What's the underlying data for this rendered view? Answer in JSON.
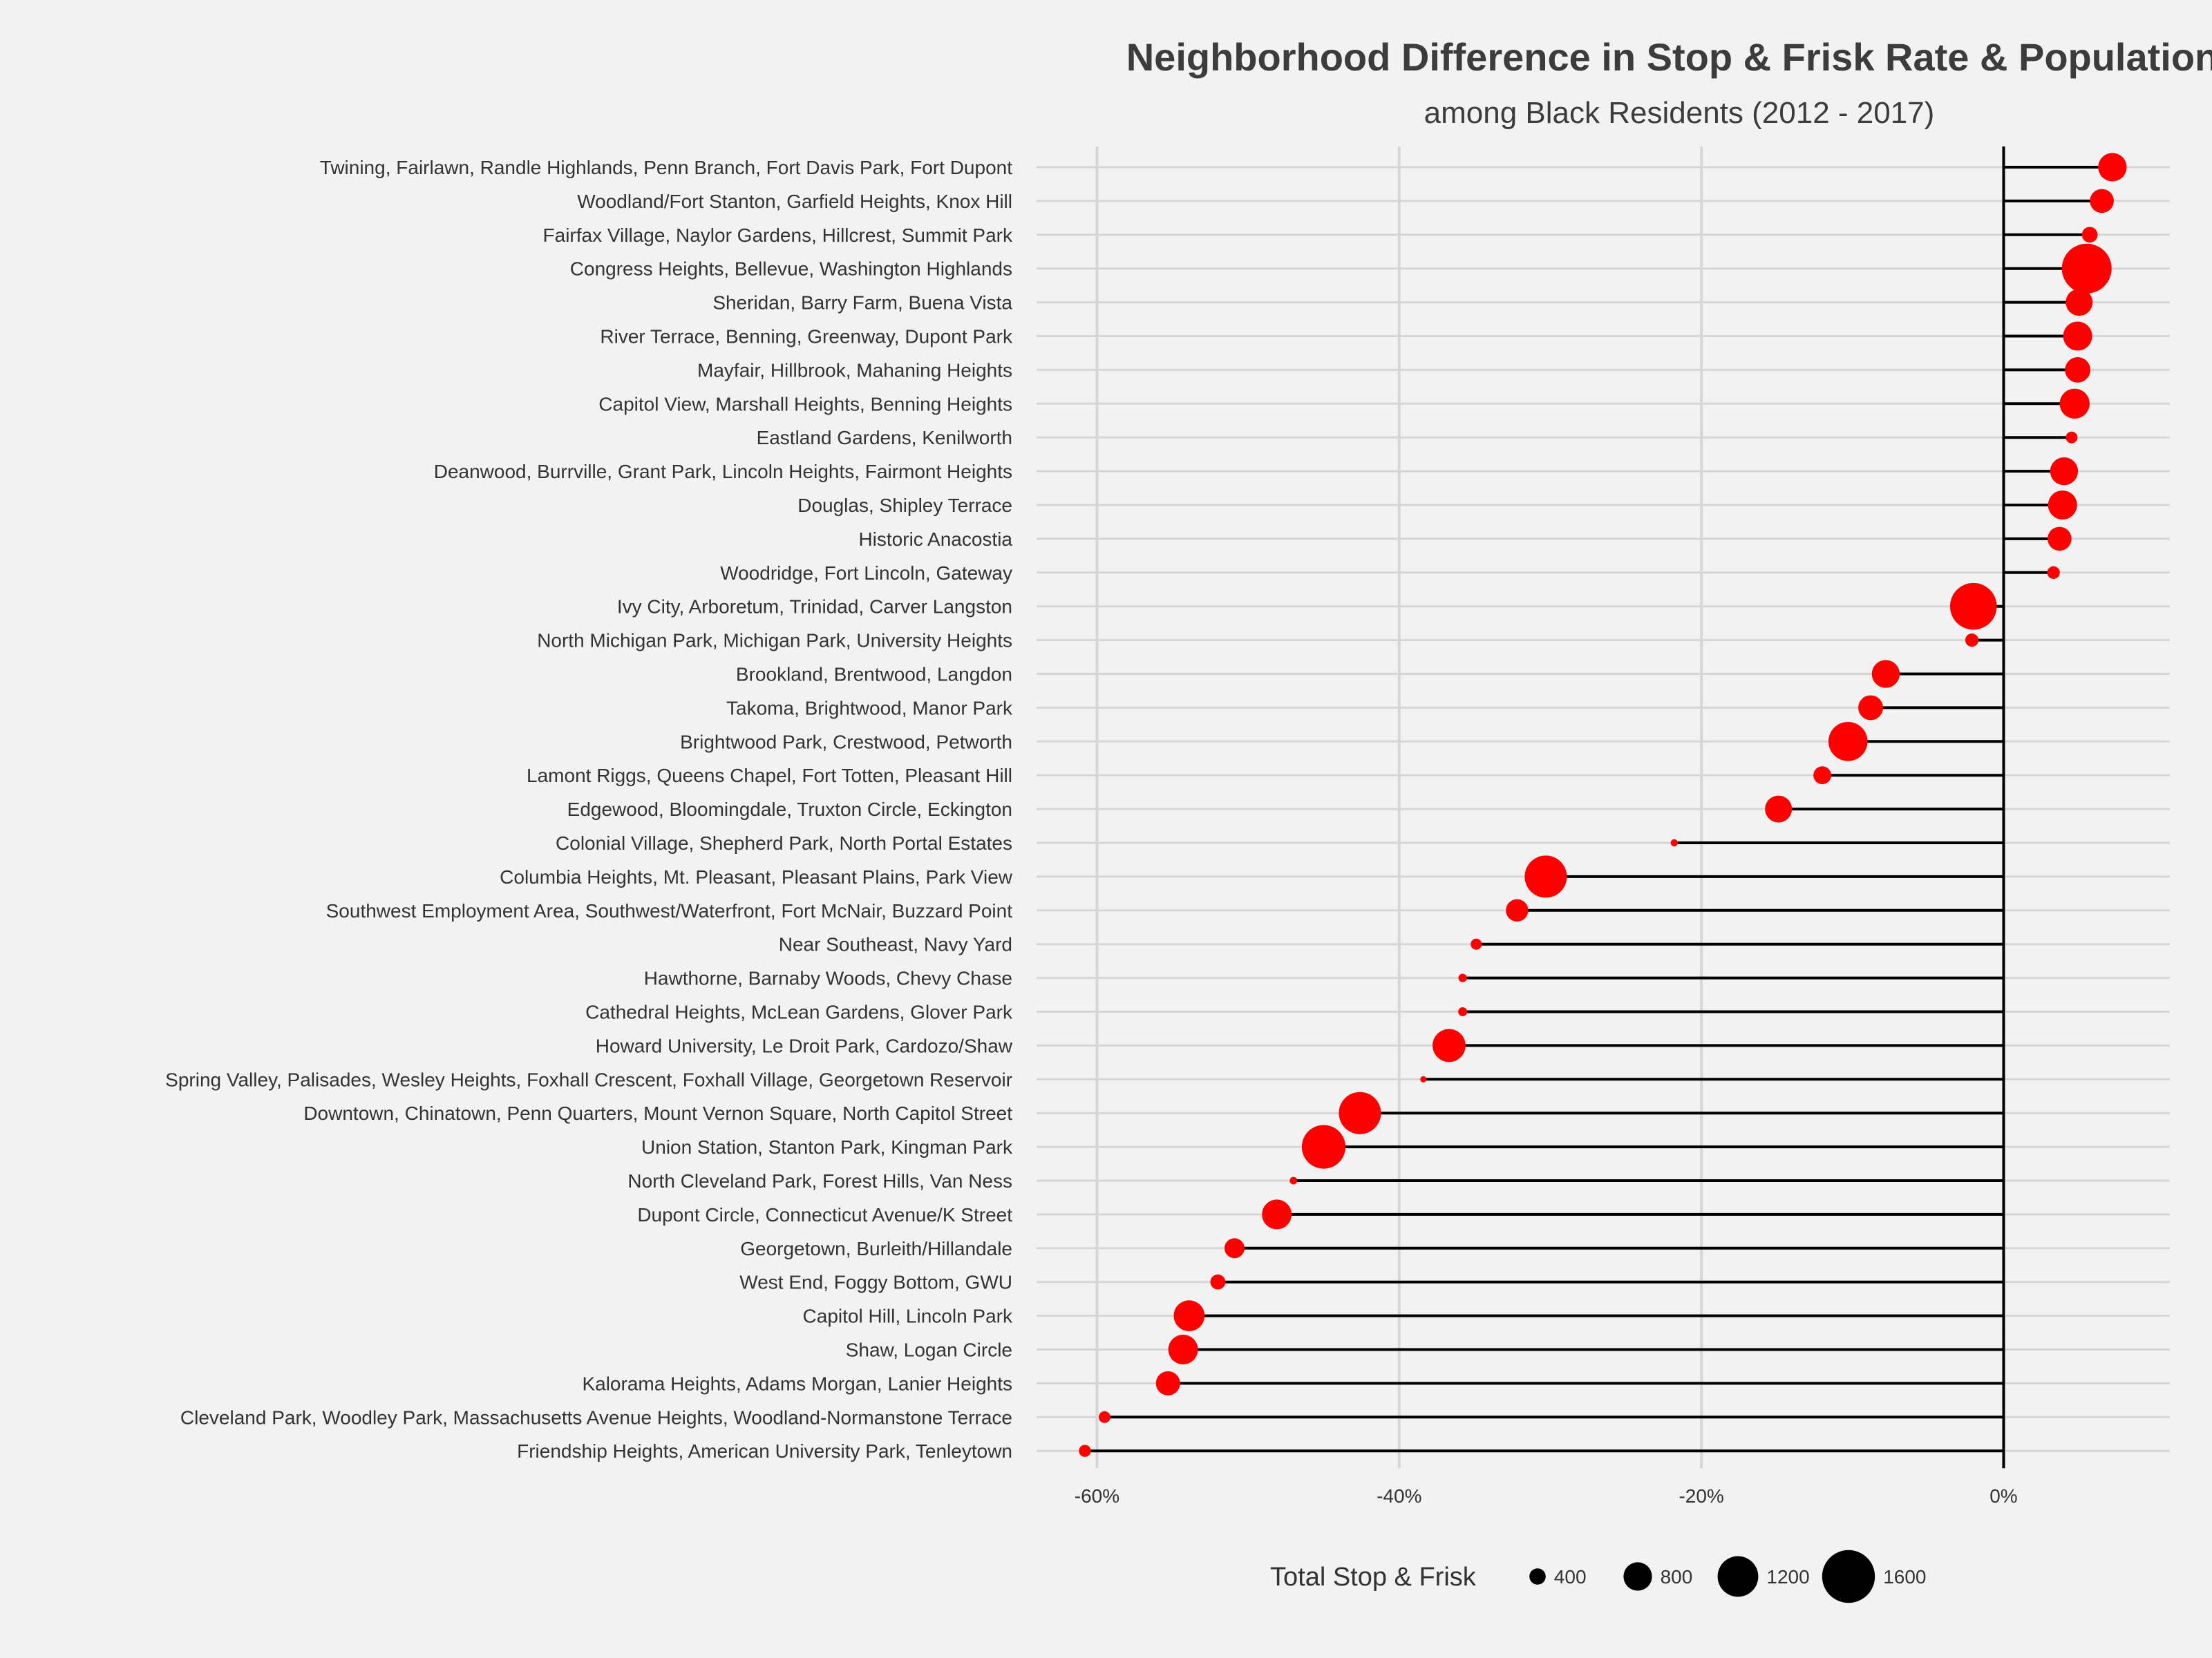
{
  "chart_data": {
    "type": "lollipop",
    "title": "Neighborhood Difference in Stop & Frisk Rate & Population",
    "subtitle": "among Black Residents (2012 - 2017)",
    "xlabel": "",
    "ylabel": "",
    "xlim": [
      -64,
      11
    ],
    "x_ticks": [
      -60,
      -40,
      -20,
      0
    ],
    "x_tick_labels": [
      "-60%",
      "-40%",
      "-20%",
      "0%"
    ],
    "grid": true,
    "point_color": "#ff0000",
    "stem_color": "#000000",
    "legend": {
      "title": "Total Stop & Frisk",
      "placement": "bottom",
      "sizes": [
        400,
        800,
        1200,
        1600
      ],
      "labels": [
        "400",
        "800",
        "1200",
        "1600"
      ]
    },
    "categories": [
      "Twining, Fairlawn, Randle Highlands, Penn Branch, Fort Davis Park, Fort Dupont",
      "Woodland/Fort Stanton, Garfield Heights, Knox Hill",
      "Fairfax Village, Naylor Gardens, Hillcrest, Summit Park",
      "Congress Heights, Bellevue, Washington Highlands",
      "Sheridan, Barry Farm, Buena Vista",
      "River Terrace, Benning, Greenway, Dupont Park",
      "Mayfair, Hillbrook, Mahaning Heights",
      "Capitol View, Marshall Heights, Benning Heights",
      "Eastland Gardens, Kenilworth",
      "Deanwood, Burrville, Grant Park, Lincoln Heights, Fairmont Heights",
      "Douglas, Shipley Terrace",
      "Historic Anacostia",
      "Woodridge, Fort Lincoln, Gateway",
      "Ivy City, Arboretum, Trinidad, Carver Langston",
      "North Michigan Park, Michigan Park, University Heights",
      "Brookland, Brentwood, Langdon",
      "Takoma, Brightwood, Manor Park",
      "Brightwood Park, Crestwood, Petworth",
      "Lamont Riggs, Queens Chapel, Fort Totten, Pleasant Hill",
      "Edgewood, Bloomingdale, Truxton Circle, Eckington",
      "Colonial Village, Shepherd Park, North Portal Estates",
      "Columbia Heights, Mt. Pleasant, Pleasant Plains, Park View",
      "Southwest Employment Area, Southwest/Waterfront, Fort McNair, Buzzard Point",
      "Near Southeast, Navy Yard",
      "Hawthorne, Barnaby Woods, Chevy Chase",
      "Cathedral Heights, McLean Gardens, Glover Park",
      "Howard University, Le Droit Park, Cardozo/Shaw",
      "Spring Valley, Palisades, Wesley Heights, Foxhall Crescent, Foxhall Village, Georgetown Reservoir",
      "Downtown, Chinatown, Penn Quarters, Mount Vernon Square, North Capitol Street",
      "Union Station, Stanton Park, Kingman Park",
      "North Cleveland Park, Forest Hills, Van Ness",
      "Dupont Circle, Connecticut Avenue/K Street",
      "Georgetown, Burleith/Hillandale",
      "West End, Foggy Bottom, GWU",
      "Capitol Hill, Lincoln Park",
      "Shaw, Logan Circle",
      "Kalorama Heights, Adams Morgan, Lanier Heights",
      "Cleveland Park, Woodley Park, Massachusetts Avenue Heights, Woodland-Normanstone Terrace",
      "Friendship Heights, American University Park, Tenleytown"
    ],
    "values": [
      7.2,
      6.5,
      5.7,
      5.5,
      5.0,
      4.9,
      4.9,
      4.7,
      4.5,
      4.0,
      3.9,
      3.7,
      3.3,
      -2.0,
      -2.1,
      -7.8,
      -8.8,
      -10.3,
      -12.0,
      -14.9,
      -21.8,
      -30.3,
      -32.2,
      -34.9,
      -35.8,
      -35.8,
      -36.7,
      -38.4,
      -42.6,
      -45.0,
      -47.0,
      -48.1,
      -50.9,
      -52.0,
      -53.9,
      -54.3,
      -55.3,
      -59.5,
      -60.8
    ],
    "totals": [
      800,
      650,
      380,
      1500,
      750,
      820,
      700,
      850,
      250,
      780,
      820,
      650,
      280,
      1400,
      300,
      780,
      680,
      1150,
      450,
      750,
      100,
      1250,
      600,
      230,
      140,
      160,
      950,
      70,
      1250,
      1300,
      110,
      840,
      520,
      360,
      880,
      840,
      660,
      250,
      260
    ]
  }
}
